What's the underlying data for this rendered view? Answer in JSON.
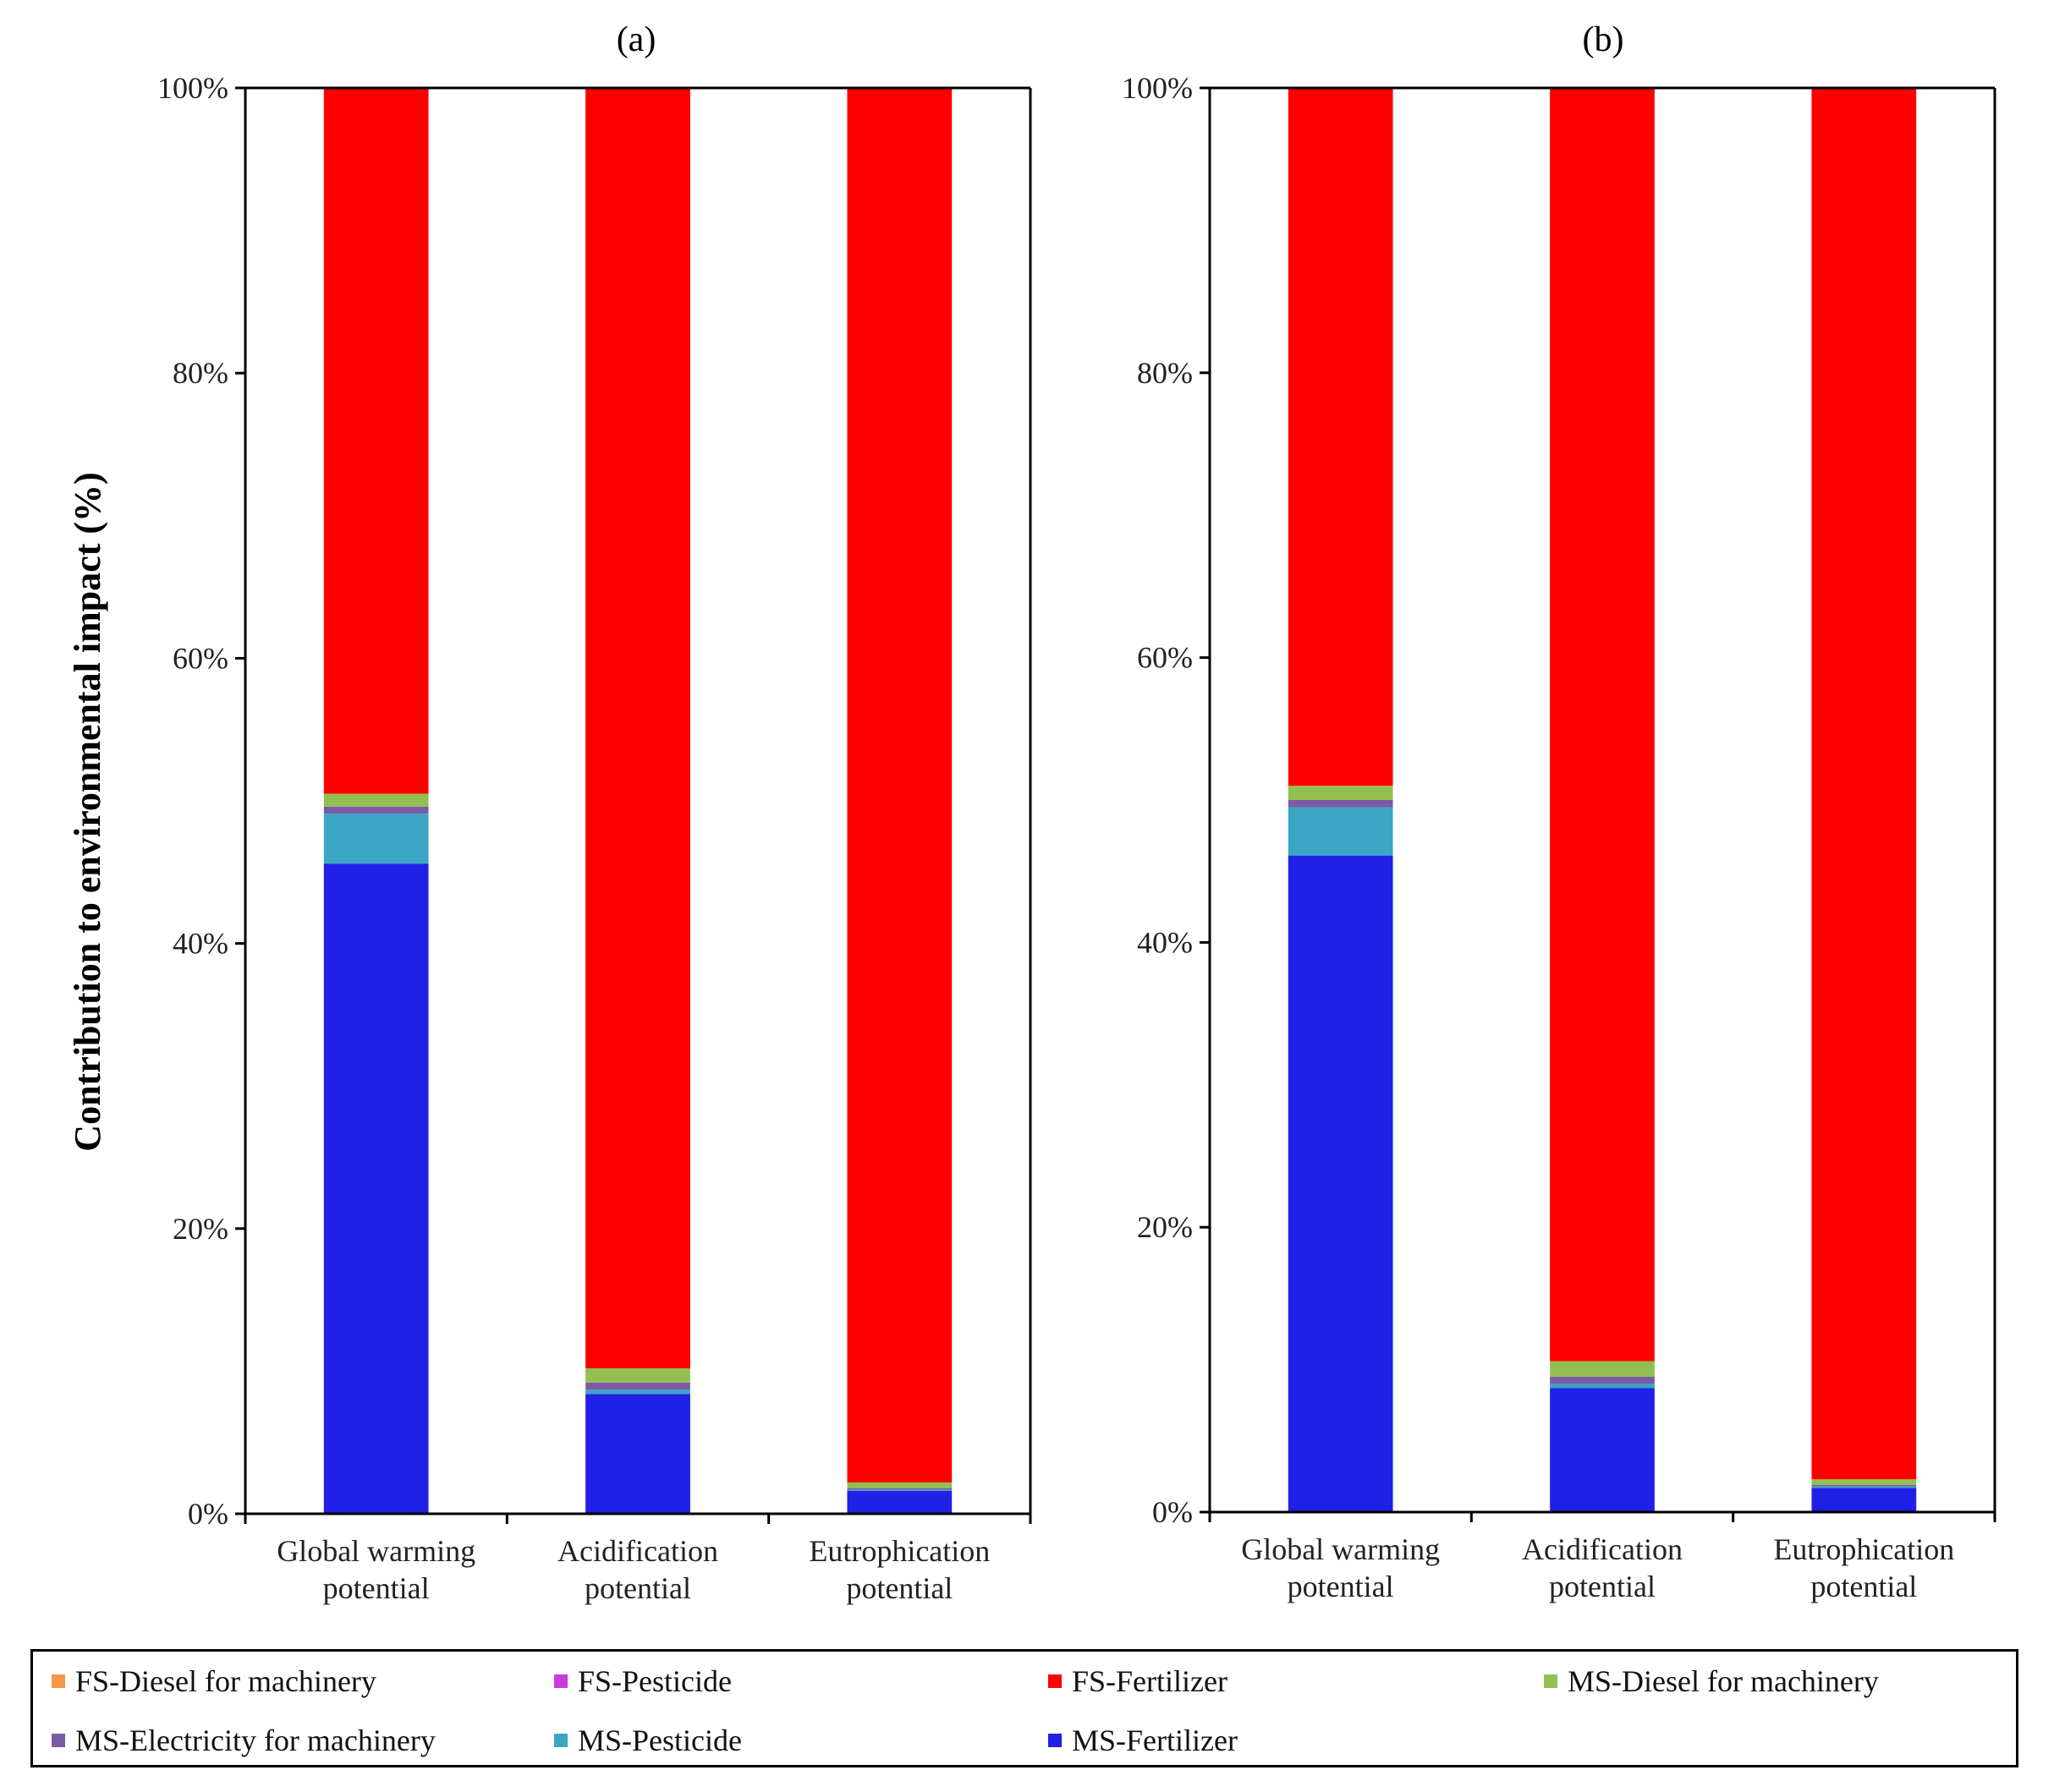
{
  "chart_data": [
    {
      "type": "bar",
      "stacked": true,
      "title": "(a)",
      "ylabel": "Contribution to environmental impact (%)",
      "ylim": [
        0,
        100
      ],
      "yticks": [
        "0%",
        "20%",
        "40%",
        "60%",
        "80%",
        "100%"
      ],
      "categories": [
        [
          "Global warming",
          "potential"
        ],
        [
          "Acidification",
          "potential"
        ],
        [
          "Eutrophication",
          "potential"
        ]
      ],
      "series": [
        {
          "name": "MS-Fertilizer",
          "color": "#2020e6",
          "values": [
            45.6,
            8.4,
            1.6
          ]
        },
        {
          "name": "MS-Pesticide",
          "color": "#3aa6c4",
          "values": [
            3.5,
            0.3,
            0.1
          ]
        },
        {
          "name": "MS-Electricity for machinery",
          "color": "#7b5aa6",
          "values": [
            0.5,
            0.5,
            0.1
          ]
        },
        {
          "name": "MS-Diesel for machinery",
          "color": "#92c050",
          "values": [
            0.9,
            1.0,
            0.4
          ]
        },
        {
          "name": "FS-Fertilizer",
          "color": "#ff0000",
          "values": [
            49.5,
            89.8,
            97.8
          ]
        },
        {
          "name": "FS-Pesticide",
          "color": "#c83cdc",
          "values": [
            0,
            0,
            0
          ]
        },
        {
          "name": "FS-Diesel for machinery",
          "color": "#f79646",
          "values": [
            0,
            0,
            0
          ]
        }
      ]
    },
    {
      "type": "bar",
      "stacked": true,
      "title": "(b)",
      "ylim": [
        0,
        100
      ],
      "yticks": [
        "0%",
        "20%",
        "40%",
        "60%",
        "80%",
        "100%"
      ],
      "categories": [
        [
          "Global warming",
          "potential"
        ],
        [
          "Acidification",
          "potential"
        ],
        [
          "Eutrophication",
          "potential"
        ]
      ],
      "series": [
        {
          "name": "MS-Fertilizer",
          "color": "#2020e6",
          "values": [
            46.1,
            8.7,
            1.7
          ]
        },
        {
          "name": "MS-Pesticide",
          "color": "#3aa6c4",
          "values": [
            3.4,
            0.3,
            0.1
          ]
        },
        {
          "name": "MS-Electricity for machinery",
          "color": "#7b5aa6",
          "values": [
            0.5,
            0.5,
            0.1
          ]
        },
        {
          "name": "MS-Diesel for machinery",
          "color": "#92c050",
          "values": [
            1.0,
            1.1,
            0.4
          ]
        },
        {
          "name": "FS-Fertilizer",
          "color": "#ff0000",
          "values": [
            49.0,
            89.4,
            97.7
          ]
        },
        {
          "name": "FS-Pesticide",
          "color": "#c83cdc",
          "values": [
            0,
            0,
            0
          ]
        },
        {
          "name": "FS-Diesel for machinery",
          "color": "#f79646",
          "values": [
            0,
            0,
            0
          ]
        }
      ]
    }
  ],
  "legend": {
    "items": [
      {
        "label": "FS-Diesel for machinery",
        "color": "#f79646"
      },
      {
        "label": "FS-Pesticide",
        "color": "#c83cdc"
      },
      {
        "label": "FS-Fertilizer",
        "color": "#ff0000"
      },
      {
        "label": "MS-Diesel for machinery",
        "color": "#92c050"
      },
      {
        "label": "MS-Electricity for machinery",
        "color": "#7b5aa6"
      },
      {
        "label": "MS-Pesticide",
        "color": "#3aa6c4"
      },
      {
        "label": "MS-Fertilizer",
        "color": "#2020e6"
      }
    ]
  }
}
